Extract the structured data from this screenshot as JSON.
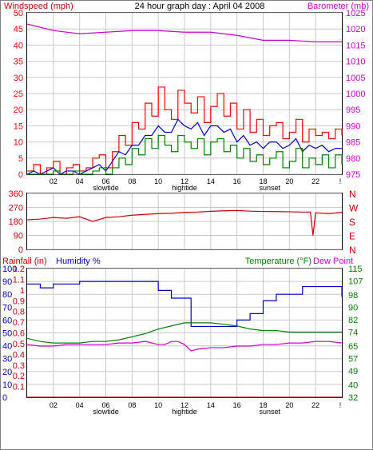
{
  "header": {
    "left_label": "Windspeed (mph)",
    "title": "24 hour graph day : April 04 2008",
    "right_label": "Barometer (mb)"
  },
  "colors": {
    "wind": "#ff0000",
    "gust": "#0000cc",
    "wind_green": "#008000",
    "barometer": "#cc00cc",
    "direction": "#cc0000",
    "rain": "#cc0000",
    "humidity": "#0000cc",
    "temperature": "#008000",
    "dewpoint": "#cc00cc",
    "grid": "#c8c8c8",
    "frame": "#000000"
  },
  "bottom_header": {
    "rain_label": "Rainfall (in)",
    "humidity_label": "Humidity %",
    "temp_label": "Temperature (°F)",
    "dew_label": "Dew Point"
  },
  "x_axis": {
    "ticks": [
      "02",
      "04",
      "06",
      "08",
      "10",
      "12",
      "14",
      "16",
      "18",
      "20",
      "22"
    ],
    "end_tick": "!",
    "events": [
      {
        "label": "slowtide",
        "x": 6
      },
      {
        "label": "hightide",
        "x": 12
      },
      {
        "label": "sunset",
        "x": 18.5
      }
    ]
  },
  "direction_axis": {
    "degree_ticks": [
      "360",
      "270",
      "180",
      "90",
      "0"
    ],
    "compass": [
      "N",
      "W",
      "S",
      "E",
      "N"
    ]
  },
  "chart_data": [
    {
      "type": "line",
      "name": "wind",
      "x_range": [
        0,
        24
      ],
      "y_left": {
        "label": "Windspeed (mph)",
        "range": [
          0,
          50
        ],
        "ticks": [
          0,
          5,
          10,
          15,
          20,
          25,
          30,
          35,
          40,
          45,
          50
        ]
      },
      "y_right": {
        "label": "Barometer (mb)",
        "range": [
          975,
          1025
        ],
        "ticks": [
          975,
          980,
          985,
          990,
          995,
          1000,
          1005,
          1010,
          1015,
          1020,
          1025
        ]
      },
      "series": [
        {
          "x": [
            0,
            0.5,
            1,
            1.5,
            2,
            2.5,
            3,
            3.5,
            4,
            4.5,
            5,
            5.5,
            6,
            6.5,
            7,
            7.5,
            8,
            8.5,
            9,
            9.5,
            10,
            10.5,
            11,
            11.5,
            12,
            12.5,
            13,
            13.5,
            14,
            14.5,
            15,
            15.5,
            16,
            16.5,
            17,
            17.5,
            18,
            18.5,
            19,
            19.5,
            20,
            20.5,
            21,
            21.5,
            22,
            22.5,
            23,
            23.5,
            24
          ],
          "values": [
            1,
            3,
            0,
            2,
            4,
            0,
            2,
            3,
            1,
            2,
            5,
            6,
            2,
            7,
            12,
            9,
            16,
            14,
            22,
            18,
            27,
            20,
            17,
            26,
            22,
            19,
            24,
            16,
            21,
            25,
            18,
            22,
            14,
            20,
            13,
            17,
            12,
            15,
            16,
            11,
            13,
            17,
            10,
            14,
            12,
            13,
            11,
            14,
            12
          ]
        },
        {
          "x": [
            0,
            0.5,
            1,
            1.5,
            2,
            2.5,
            3,
            3.5,
            4,
            4.5,
            5,
            5.5,
            6,
            6.5,
            7,
            7.5,
            8,
            8.5,
            9,
            9.5,
            10,
            10.5,
            11,
            11.5,
            12,
            12.5,
            13,
            13.5,
            14,
            14.5,
            15,
            15.5,
            16,
            16.5,
            17,
            17.5,
            18,
            18.5,
            19,
            19.5,
            20,
            20.5,
            21,
            21.5,
            22,
            22.5,
            23,
            23.5,
            24
          ],
          "values": [
            0,
            1,
            0,
            1,
            2,
            0,
            1,
            1,
            0,
            1,
            2,
            3,
            1,
            4,
            7,
            6,
            9,
            9,
            12,
            12,
            15,
            13,
            13,
            17,
            15,
            14,
            16,
            12,
            15,
            15,
            13,
            14,
            10,
            12,
            9,
            10,
            8,
            10,
            10,
            8,
            9,
            11,
            7,
            9,
            8,
            9,
            7,
            8,
            8
          ]
        },
        {
          "x": [
            0,
            0.5,
            1,
            1.5,
            2,
            2.5,
            3,
            3.5,
            4,
            4.5,
            5,
            5.5,
            6,
            6.5,
            7,
            7.5,
            8,
            8.5,
            9,
            9.5,
            10,
            10.5,
            11,
            11.5,
            12,
            12.5,
            13,
            13.5,
            14,
            14.5,
            15,
            15.5,
            16,
            16.5,
            17,
            17.5,
            18,
            18.5,
            19,
            19.5,
            20,
            20.5,
            21,
            21.5,
            22,
            22.5,
            23,
            23.5,
            24
          ],
          "values": [
            0,
            0,
            0,
            0,
            1,
            0,
            0,
            1,
            0,
            0,
            1,
            2,
            0,
            2,
            5,
            3,
            8,
            6,
            11,
            8,
            12,
            9,
            7,
            12,
            10,
            8,
            11,
            6,
            10,
            11,
            7,
            9,
            5,
            8,
            4,
            6,
            3,
            5,
            7,
            2,
            4,
            8,
            2,
            5,
            3,
            6,
            2,
            6,
            3
          ]
        },
        {
          "x": [
            0,
            2,
            4,
            6,
            8,
            10,
            12,
            14,
            16,
            18,
            20,
            22,
            24
          ],
          "values": [
            1021.5,
            1019.5,
            1018.5,
            1019,
            1019.5,
            1019.5,
            1019,
            1019,
            1018,
            1016.5,
            1016.5,
            1016,
            1016
          ]
        }
      ]
    },
    {
      "type": "line",
      "name": "wind direction",
      "x_range": [
        0,
        24
      ],
      "y_range": [
        0,
        360
      ],
      "ticks": [
        0,
        90,
        180,
        270,
        360
      ],
      "x": [
        0,
        1,
        2,
        3,
        4,
        5,
        6,
        7,
        8,
        9,
        10,
        11,
        12,
        13,
        14,
        15,
        16,
        17,
        18,
        19,
        20,
        21,
        21.6,
        21.8,
        22,
        23,
        24
      ],
      "values": [
        190,
        195,
        205,
        200,
        210,
        180,
        205,
        210,
        220,
        225,
        230,
        232,
        238,
        240,
        245,
        248,
        250,
        246,
        244,
        243,
        242,
        240,
        240,
        90,
        235,
        230,
        238
      ]
    },
    {
      "type": "line",
      "name": "rain / humidity / temperature",
      "x_range": [
        0,
        24
      ],
      "y_left_rain": {
        "label": "Rainfall (in)",
        "range": [
          0,
          1.2
        ],
        "ticks": [
          0,
          0.1,
          0.2,
          0.3,
          0.4,
          0.5,
          0.6,
          0.7,
          0.8,
          0.9,
          1.0,
          1.1,
          1.2
        ]
      },
      "y_left_humidity": {
        "label": "Humidity %",
        "range": [
          0,
          100
        ],
        "ticks": [
          0,
          10,
          20,
          30,
          40,
          50,
          60,
          70,
          80,
          90,
          100
        ]
      },
      "y_right": {
        "label": "Temperature (°F)",
        "range": [
          32,
          115
        ],
        "ticks": [
          32,
          40,
          49,
          57,
          65,
          74,
          82,
          90,
          98,
          107,
          115
        ]
      },
      "series": [
        {
          "x": [
            0,
            24
          ],
          "values": [
            0,
            0
          ]
        },
        {
          "x": [
            0,
            1,
            1.5,
            2,
            3,
            4,
            5,
            6,
            7,
            8,
            9,
            10,
            10.5,
            11,
            12,
            12.5,
            13,
            14,
            15,
            16,
            16.5,
            17,
            18,
            19,
            20,
            21,
            22,
            23,
            24
          ],
          "values": [
            88,
            85,
            85,
            88,
            88,
            90,
            90,
            90,
            90,
            90,
            90,
            83,
            83,
            77,
            77,
            55,
            55,
            55,
            55,
            60,
            60,
            65,
            75,
            80,
            80,
            86,
            86,
            86,
            78
          ]
        },
        {
          "x": [
            0,
            1,
            2,
            3,
            4,
            5,
            6,
            7,
            8,
            9,
            10,
            11,
            12,
            13,
            14,
            15,
            16,
            17,
            18,
            19,
            20,
            21,
            22,
            23,
            24
          ],
          "values": [
            70,
            68,
            67,
            67,
            67,
            68,
            68,
            69,
            71,
            73,
            76,
            78,
            80,
            80,
            80,
            79,
            78,
            76,
            75,
            75,
            74,
            74,
            74,
            74,
            74
          ]
        },
        {
          "x": [
            0,
            1,
            2,
            3,
            4,
            5,
            6,
            7,
            8,
            9,
            10,
            10.5,
            11,
            11.5,
            12,
            12.5,
            13,
            14,
            15,
            16,
            17,
            18,
            19,
            20,
            21,
            22,
            23,
            24
          ],
          "values": [
            66,
            65,
            65,
            66,
            66,
            66,
            66,
            67,
            67,
            68,
            66,
            66,
            68,
            68,
            66,
            62,
            63,
            64,
            64,
            65,
            65,
            66,
            66,
            67,
            67,
            68,
            68,
            67
          ]
        }
      ]
    }
  ]
}
